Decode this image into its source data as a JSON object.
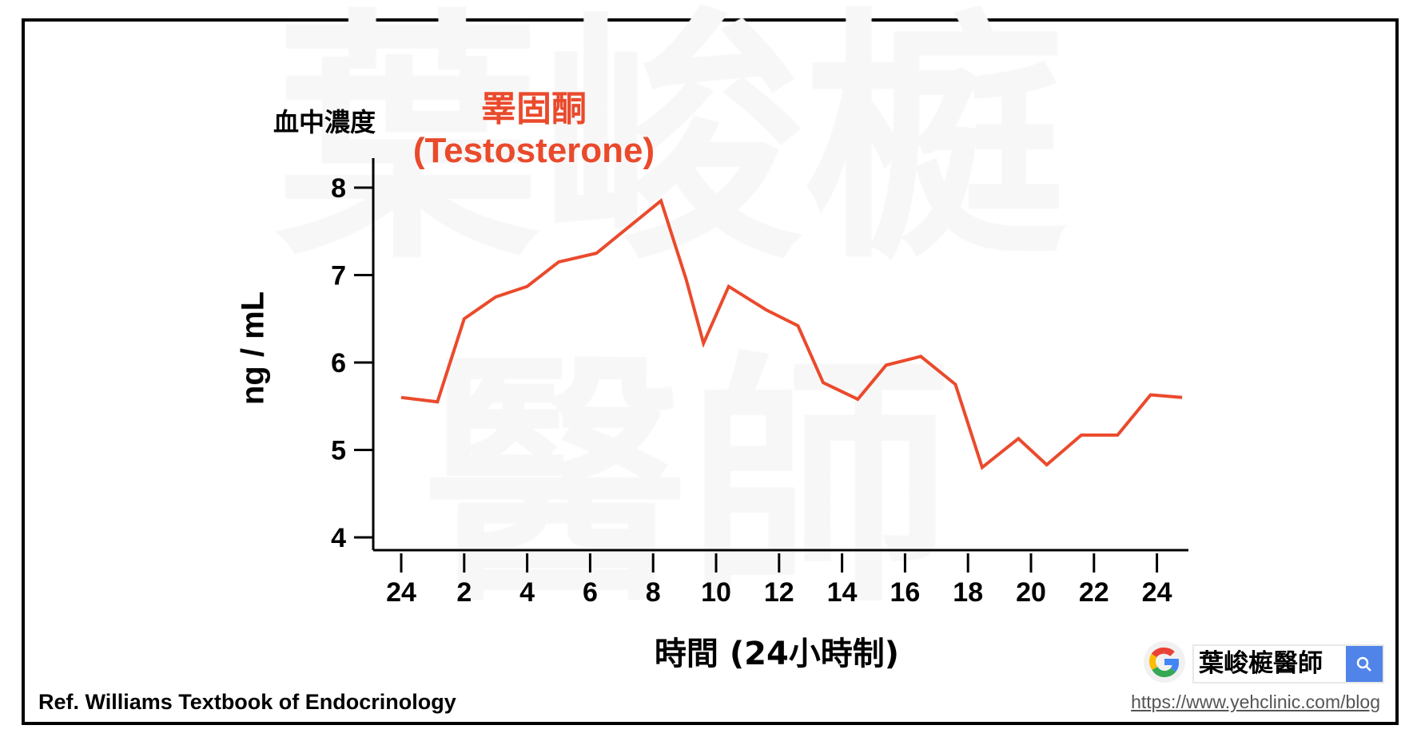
{
  "watermark": {
    "line1": "葉峻榳",
    "line2": "醫師"
  },
  "chart_data": {
    "type": "line",
    "title": "睪固酮",
    "subtitle": "(Testosterone)",
    "ylabel_top": "血中濃度",
    "ylabel": "ng / mL",
    "xlabel": "時間 (24小時制)",
    "ylim": [
      4,
      8.3
    ],
    "yticks": [
      4,
      5,
      6,
      7,
      8
    ],
    "xlim": [
      -1,
      25.3
    ],
    "xticks": [
      0,
      2,
      4,
      6,
      8,
      10,
      12,
      14,
      16,
      18,
      20,
      22,
      24
    ],
    "xtick_labels": [
      "24",
      "2",
      "4",
      "6",
      "8",
      "10",
      "12",
      "14",
      "16",
      "18",
      "20",
      "22",
      "24"
    ],
    "grid": false,
    "series": [
      {
        "name": "Testosterone",
        "color": "#ea4a2c",
        "x": [
          0,
          1.15,
          2,
          3,
          4,
          5,
          6.2,
          8.25,
          9.05,
          9.6,
          10.4,
          11.6,
          12.6,
          13.4,
          14.5,
          15.4,
          16.5,
          17.6,
          18.45,
          19.6,
          20.5,
          21.6,
          22.75,
          23.8,
          24.8
        ],
        "y": [
          5.6,
          5.55,
          6.5,
          6.75,
          6.87,
          7.15,
          7.25,
          7.85,
          6.95,
          6.22,
          6.87,
          6.6,
          6.42,
          5.77,
          5.58,
          5.97,
          6.07,
          5.75,
          4.8,
          5.13,
          4.83,
          5.17,
          5.17,
          5.63,
          5.6
        ]
      }
    ]
  },
  "footer": {
    "reference": "Ref. Williams Textbook of Endocrinology",
    "search_text": "葉峻榳醫師",
    "url": "https://www.yehclinic.com/blog"
  },
  "colors": {
    "accent": "#ea4a2c",
    "search_button": "#5084e8"
  }
}
